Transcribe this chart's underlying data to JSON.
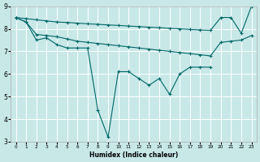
{
  "xlabel": "Humidex (Indice chaleur)",
  "background_color": "#c8e8e8",
  "grid_color": "#ffffff",
  "line_color": "#006666",
  "xlim": [
    -0.5,
    23.5
  ],
  "ylim": [
    3,
    9
  ],
  "yticks": [
    3,
    4,
    5,
    6,
    7,
    8,
    9
  ],
  "xticks": [
    0,
    1,
    2,
    3,
    4,
    5,
    6,
    7,
    8,
    9,
    10,
    11,
    12,
    13,
    14,
    15,
    16,
    17,
    18,
    19,
    20,
    21,
    22,
    23
  ],
  "line1_x": [
    0,
    1,
    2,
    3,
    4,
    5,
    6,
    7,
    8,
    9,
    10,
    11,
    12,
    13,
    14,
    15,
    16,
    17,
    18,
    19
  ],
  "line1_y": [
    8.5,
    8.3,
    7.5,
    7.6,
    7.3,
    7.15,
    7.15,
    7.15,
    4.4,
    3.2,
    6.1,
    6.1,
    5.8,
    5.5,
    5.8,
    5.1,
    6.0,
    6.3,
    6.3,
    6.3
  ],
  "line2_x": [
    0,
    1,
    2,
    3,
    4,
    5,
    6,
    7,
    8,
    9,
    10,
    11,
    12,
    13,
    14,
    15,
    16,
    17,
    18,
    19,
    20,
    21,
    22,
    23
  ],
  "line2_y": [
    8.5,
    8.45,
    8.4,
    8.35,
    8.3,
    8.28,
    8.25,
    8.22,
    8.2,
    8.17,
    8.15,
    8.12,
    8.1,
    8.07,
    8.05,
    8.02,
    8.0,
    7.97,
    7.95,
    7.93,
    8.5,
    8.5,
    7.8,
    9.0
  ],
  "line3_x": [
    0,
    1,
    2,
    3,
    4,
    5,
    6,
    7,
    8,
    9,
    10,
    11,
    12,
    13,
    14,
    15,
    16,
    17,
    18,
    19,
    20,
    21,
    22,
    23
  ],
  "line3_y": [
    8.5,
    8.3,
    7.75,
    7.7,
    7.65,
    7.55,
    7.45,
    7.4,
    7.35,
    7.3,
    7.25,
    7.2,
    7.15,
    7.1,
    7.05,
    7.0,
    6.95,
    6.9,
    6.85,
    6.8,
    7.4,
    7.45,
    7.5,
    7.7
  ]
}
